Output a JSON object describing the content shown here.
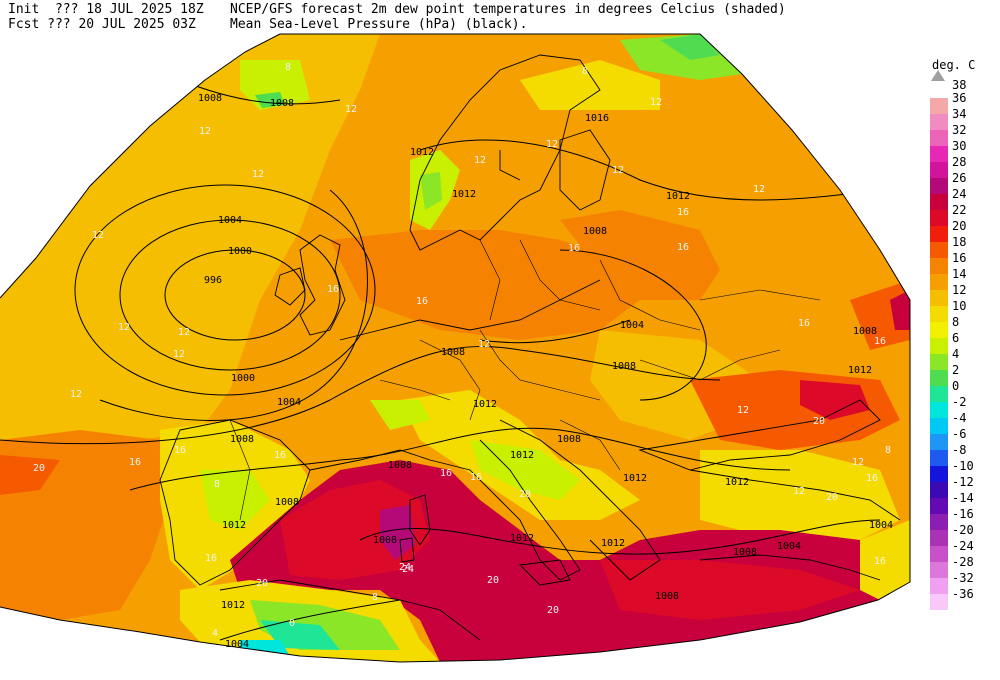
{
  "header": {
    "init": "Init  ??? 18 JUL 2025 18Z",
    "fcst": "Fcst ??? 20 JUL 2025 03Z",
    "title_line1": "NCEP/GFS forecast 2m dew point temperatures in degrees Celcius (shaded)",
    "title_line2": "Mean Sea-Level Pressure (hPa) (black)."
  },
  "legend": {
    "unit": "deg. C",
    "top_label": "38",
    "bins": [
      {
        "label": "36",
        "color": "#f4a8a8"
      },
      {
        "label": "34",
        "color": "#f08cc0"
      },
      {
        "label": "32",
        "color": "#ec64b8"
      },
      {
        "label": "30",
        "color": "#e628b4"
      },
      {
        "label": "28",
        "color": "#d2149c"
      },
      {
        "label": "26",
        "color": "#b40a78"
      },
      {
        "label": "24",
        "color": "#c8003c"
      },
      {
        "label": "22",
        "color": "#dc0a28"
      },
      {
        "label": "20",
        "color": "#f01e0a"
      },
      {
        "label": "18",
        "color": "#f55a00"
      },
      {
        "label": "16",
        "color": "#f58200"
      },
      {
        "label": "14",
        "color": "#f5a000"
      },
      {
        "label": "12",
        "color": "#f5be00"
      },
      {
        "label": "10",
        "color": "#f5dc00"
      },
      {
        "label": "8",
        "color": "#f0f000"
      },
      {
        "label": "6",
        "color": "#c8f000"
      },
      {
        "label": "4",
        "color": "#8ce628"
      },
      {
        "label": "2",
        "color": "#50dc50"
      },
      {
        "label": "0",
        "color": "#1ee696"
      },
      {
        "label": "-2",
        "color": "#00e6dc"
      },
      {
        "label": "-4",
        "color": "#00c8f5"
      },
      {
        "label": "-6",
        "color": "#1e96f5"
      },
      {
        "label": "-8",
        "color": "#1e5af0"
      },
      {
        "label": "-10",
        "color": "#1414dc"
      },
      {
        "label": "-12",
        "color": "#3c0ab4"
      },
      {
        "label": "-14",
        "color": "#640ab4"
      },
      {
        "label": "-16",
        "color": "#8c1eb4"
      },
      {
        "label": "-20",
        "color": "#aa32b4"
      },
      {
        "label": "-24",
        "color": "#c850c8"
      },
      {
        "label": "-28",
        "color": "#dc78dc"
      },
      {
        "label": "-32",
        "color": "#f0a0f0"
      },
      {
        "label": "-36",
        "color": "#f8c8f8"
      }
    ]
  },
  "map": {
    "isobar_labels": [
      "1008",
      "1008",
      "1012",
      "1012",
      "1016",
      "1012",
      "1008",
      "1004",
      "1000",
      "996",
      "1004",
      "1008",
      "1008",
      "1000",
      "1004",
      "1008",
      "1008",
      "1008",
      "1012",
      "1012",
      "1012",
      "1008",
      "1008",
      "1012",
      "1012",
      "1012",
      "1012",
      "1008",
      "1004",
      "1004",
      "1008",
      "1008",
      "1012",
      "1012",
      "1004"
    ],
    "dew_labels": [
      "12",
      "8",
      "12",
      "12",
      "12",
      "12",
      "12",
      "12",
      "8",
      "12",
      "12",
      "12",
      "16",
      "16",
      "12",
      "16",
      "16",
      "12",
      "16",
      "12",
      "16",
      "16",
      "20",
      "16",
      "16",
      "12",
      "20",
      "24",
      "20",
      "16",
      "16",
      "12",
      "8",
      "12",
      "20",
      "16",
      "8",
      "4",
      "0",
      "16",
      "24",
      "20",
      "20",
      "20",
      "16",
      "12",
      "16",
      "8"
    ]
  }
}
